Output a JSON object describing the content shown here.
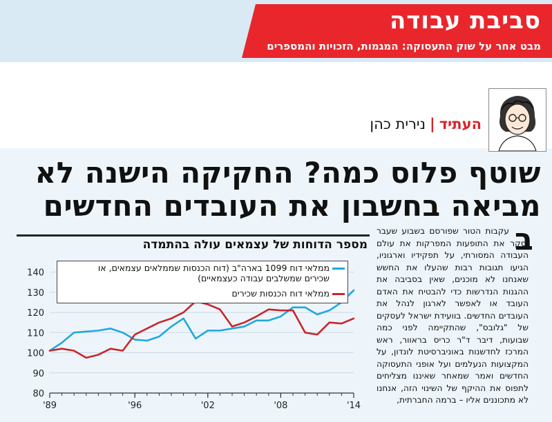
{
  "section": {
    "title": "סביבת עבודה",
    "subtitle": "מבט אחר על שוק התעסוקה: המגמות, הזכויות והמספרים"
  },
  "byline": {
    "tag": "העתיד",
    "separator": "|",
    "author": "נירית כהן"
  },
  "headline": {
    "line1": "שוטף פלוס כמה? החקיקה הישנה לא",
    "line2": "מביאה בחשבון את העובדים החדשים"
  },
  "article": {
    "dropcap": "ב",
    "text": "עקבות הטור שפורסם בשבוע שעבר וסקר את התופעות המפרקות את עולם העבודה המסורתי, על תפקידיו וארגוניו, הגיעו תגובות רבות שהעלו את החשש שאנחנו לא מוכנים, שאין בסביבה את ההגנות הנדרשות כדי להבטיח את האדם העובד או לאפשר לארגון לנהל את העובדים החדשים. בוועידת ישראל לעסקים של \"גלובס\", שהתקיימה לפני כמה שבועות, דיבר ד\"ר כריס בראוור, ראש המרכז לחדשנות באוניברסיטת לונדון, על המקצועות הנעלמים ועל אופני התעסוקה החדשים ואמר שמאחר שאיננו מצליחים לתפוס את ההיקף של השינוי הזה, אנחנו לא מתכוננים אליו – ברמה החברתית,"
  },
  "chart_data": {
    "type": "line",
    "title": "מספר הדוחות של עצמאים עולה בהתמדה",
    "x": [
      1989,
      1990,
      1991,
      1992,
      1993,
      1994,
      1995,
      1996,
      1997,
      1998,
      1999,
      2000,
      2001,
      2002,
      2003,
      2004,
      2005,
      2006,
      2007,
      2008,
      2009,
      2010,
      2011,
      2012,
      2013,
      2014
    ],
    "x_tick_labels": [
      "'89",
      "'96",
      "'02",
      "'08",
      "'14"
    ],
    "x_tick_values": [
      1989,
      1996,
      2002,
      2008,
      2014
    ],
    "ylim": [
      80,
      145
    ],
    "y_ticks": [
      80,
      90,
      100,
      110,
      120,
      130,
      140
    ],
    "grid": true,
    "series": [
      {
        "name": "ממלאי דוח 1099 בארה\"ב (דוח הכנסות שממלאים עצמאים, או שכירים שמשלבים עבודה כעצמאיים)",
        "color": "#1fa8dc",
        "values": [
          101,
          105,
          110,
          110.5,
          111,
          112,
          110,
          106.5,
          106,
          108,
          113,
          117,
          107,
          111,
          111,
          112,
          113,
          116,
          116,
          118,
          122.5,
          122.5,
          119,
          121,
          125,
          131
        ]
      },
      {
        "name": "ממלאי דוח הכנסות שכירים",
        "color": "#c8252b",
        "values": [
          101,
          102,
          101,
          97.5,
          99,
          102,
          101,
          109,
          112,
          115,
          117,
          120,
          125.5,
          124,
          121.5,
          113,
          115,
          118,
          121.5,
          121,
          121,
          110,
          109,
          115,
          114.5,
          117
        ]
      }
    ]
  },
  "colors": {
    "accent_red": "#e8262c",
    "header_blue": "#d9eaf5",
    "article_bg": "#eef5fa"
  }
}
